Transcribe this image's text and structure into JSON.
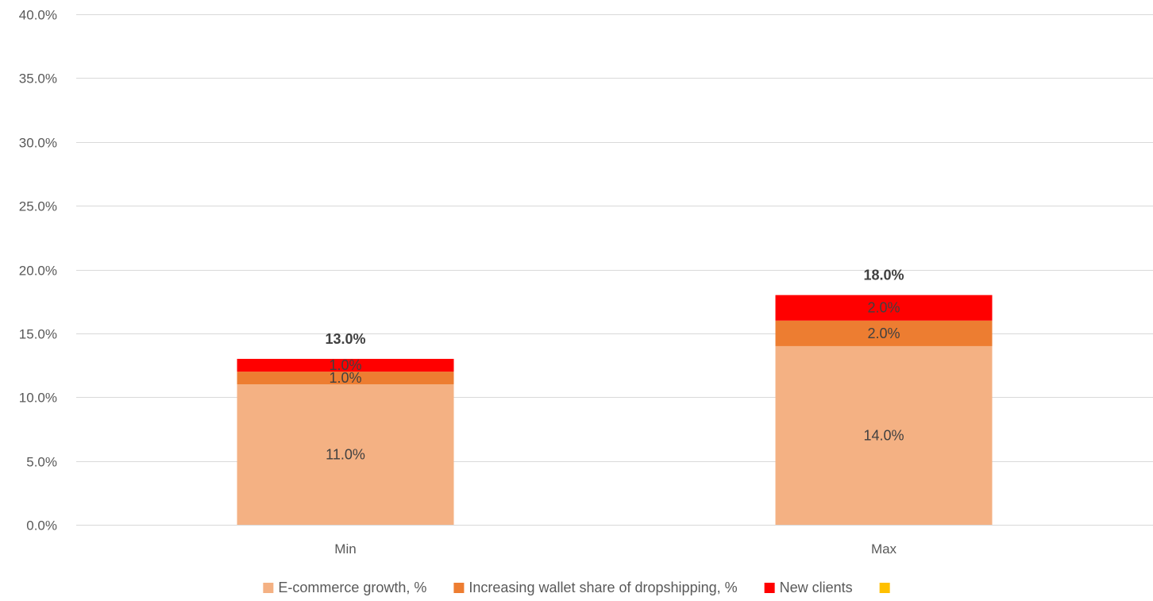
{
  "chart_data": {
    "type": "bar",
    "stacked": true,
    "categories": [
      "Min",
      "Max"
    ],
    "series": [
      {
        "name": "E-commerce growth, %",
        "color": "#F4B183",
        "values": [
          11.0,
          14.0
        ],
        "labels": [
          "11.0%",
          "14.0%"
        ]
      },
      {
        "name": "Increasing wallet share of dropshipping, %",
        "color": "#ED7D31",
        "values": [
          1.0,
          2.0
        ],
        "labels": [
          "1.0%",
          "2.0%"
        ]
      },
      {
        "name": "New clients",
        "color": "#FF0000",
        "values": [
          1.0,
          2.0
        ],
        "labels": [
          "1.0%",
          "2.0%"
        ]
      },
      {
        "name": "",
        "color": "#FFC000",
        "values": [
          0,
          0
        ],
        "labels": [
          "",
          ""
        ]
      }
    ],
    "totals": [
      13.0,
      18.0
    ],
    "total_labels": [
      "13.0%",
      "18.0%"
    ],
    "ylim": [
      0,
      40
    ],
    "yticks": [
      0,
      5,
      10,
      15,
      20,
      25,
      30,
      35,
      40
    ],
    "ytick_labels": [
      "0.0%",
      "5.0%",
      "10.0%",
      "15.0%",
      "20.0%",
      "25.0%",
      "30.0%",
      "35.0%",
      "40.0%"
    ],
    "grid": true,
    "legend_position": "bottom",
    "title": "",
    "xlabel": "",
    "ylabel": ""
  }
}
